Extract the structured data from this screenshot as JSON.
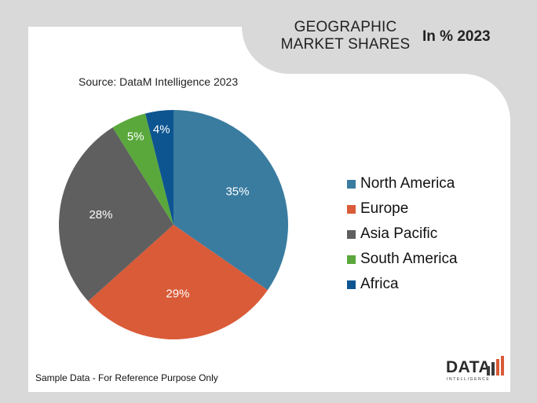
{
  "header": {
    "title_line1": "GEOGRAPHIC",
    "title_line2": "MARKET SHARES",
    "subtitle": "In % 2023"
  },
  "source": "Source: DataM Intelligence 2023",
  "footer_note": "Sample Data - For Reference Purpose Only",
  "logo": {
    "text": "DATA",
    "subtext": "INTELLIGENCE"
  },
  "chart_data": {
    "type": "pie",
    "title": "",
    "categories": [
      "North America",
      "Europe",
      "Asia Pacific",
      "South America",
      "Africa"
    ],
    "values": [
      35,
      29,
      28,
      5,
      4
    ],
    "labels": [
      "35%",
      "29%",
      "28%",
      "5%",
      "4%"
    ],
    "colors": [
      "#3a7ca0",
      "#d95b38",
      "#5f5f5f",
      "#5aa83c",
      "#0d5591"
    ],
    "legend_position": "right",
    "start_angle": "12 o'clock, clockwise"
  }
}
